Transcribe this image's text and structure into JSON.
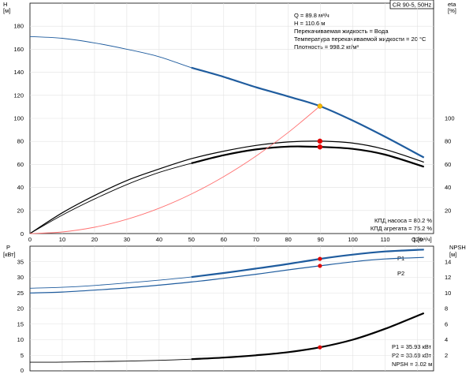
{
  "chart_data": [
    {
      "type": "line",
      "badge": "CR 90-5, 50Hz",
      "x_axis": {
        "label": "Q [м³/ч]",
        "range": [
          0,
          125
        ],
        "ticks": [
          10,
          20,
          30,
          40,
          50,
          60,
          70,
          80,
          90,
          100,
          110,
          120
        ],
        "origin_label": "0"
      },
      "y_left": {
        "label_top": "H",
        "label_bottom": "[м]",
        "range": [
          0,
          200
        ],
        "ticks": [
          20,
          40,
          60,
          80,
          100,
          120,
          140,
          160,
          180
        ],
        "origin_label": "0"
      },
      "y_right": {
        "label_top": "eta",
        "label_bottom": "[%]",
        "range": [
          0,
          200
        ],
        "ticks": [
          20,
          40,
          60,
          80,
          100
        ]
      },
      "series": [
        {
          "id": "H",
          "color": "#1f5c9e",
          "width": 2.2,
          "thin_before_x": 45,
          "x": [
            0,
            10,
            20,
            30,
            40,
            50,
            60,
            70,
            80,
            89.8,
            100,
            110,
            122
          ],
          "y": [
            171,
            169.5,
            165.5,
            160,
            153.5,
            144,
            136,
            127,
            119,
            110.6,
            98,
            84,
            66
          ]
        },
        {
          "id": "eta_pump",
          "color": "#000000",
          "width": 1.2,
          "x": [
            0,
            10,
            20,
            30,
            40,
            50,
            60,
            70,
            80,
            89.8,
            100,
            110,
            122
          ],
          "y": [
            0,
            18,
            33,
            46,
            56,
            65,
            71.5,
            76.5,
            79.5,
            80.2,
            78.5,
            73,
            62
          ]
        },
        {
          "id": "eta_unit",
          "color": "#000000",
          "width": 2.2,
          "thin_before_x": 45,
          "x": [
            0,
            10,
            20,
            30,
            40,
            50,
            60,
            70,
            80,
            89.8,
            100,
            110,
            122
          ],
          "y": [
            0,
            16,
            30,
            42.5,
            53,
            61,
            68,
            73,
            75.5,
            75.2,
            73.5,
            68.5,
            58
          ]
        },
        {
          "id": "system",
          "color": "#ff7070",
          "width": 0.9,
          "x": [
            0,
            10,
            20,
            30,
            40,
            50,
            60,
            70,
            80,
            89.8
          ],
          "y": [
            0,
            1.4,
            5.5,
            12.4,
            22,
            34.3,
            49.4,
            67.2,
            87.8,
            110.6
          ]
        }
      ],
      "points": [
        {
          "x": 89.8,
          "y": 110.6,
          "color": "#f5b800"
        },
        {
          "x": 89.8,
          "y": 80.2,
          "color": "#e00000"
        },
        {
          "x": 89.8,
          "y": 75.2,
          "color": "#e00000"
        }
      ],
      "annotations": {
        "top": [
          "Q = 89.8 м³/ч",
          "H = 110.6 м",
          "Перекачиваемая жидкость = Вода",
          "Температура перекачиваемой жидкости = 20 °C",
          "Плотность = 998.2 кг/м³"
        ],
        "bottom": [
          "КПД насоса = 80.2 %",
          "КПД агрегата = 75.2 %"
        ]
      }
    },
    {
      "type": "line",
      "x_axis": {
        "range": [
          0,
          125
        ]
      },
      "y_left": {
        "label_top": "P",
        "label_bottom": "[кВт]",
        "range": [
          0,
          40
        ],
        "ticks": [
          5,
          10,
          15,
          20,
          25,
          30,
          35
        ],
        "origin_label": "0"
      },
      "y_right": {
        "label_top": "NPSH",
        "label_bottom": "[м]",
        "range": [
          0,
          16
        ],
        "ticks": [
          2,
          4,
          6,
          8,
          10,
          12,
          14
        ]
      },
      "series": [
        {
          "id": "P1",
          "name": "P1",
          "axis": "left",
          "color": "#1f5c9e",
          "width": 2.2,
          "thin_before_x": 45,
          "x": [
            0,
            10,
            20,
            30,
            40,
            50,
            60,
            70,
            80,
            89.8,
            100,
            110,
            122
          ],
          "y": [
            26.5,
            26.8,
            27.4,
            28.2,
            29.1,
            30.1,
            31.4,
            32.8,
            34.3,
            35.93,
            37.3,
            38.3,
            38.9
          ]
        },
        {
          "id": "P2",
          "name": "P2",
          "axis": "left",
          "color": "#1f5c9e",
          "width": 1.2,
          "x": [
            0,
            10,
            20,
            30,
            40,
            50,
            60,
            70,
            80,
            89.8,
            100,
            110,
            122
          ],
          "y": [
            25,
            25.3,
            25.9,
            26.6,
            27.5,
            28.5,
            29.7,
            31,
            32.4,
            33.69,
            35,
            35.9,
            36.4
          ]
        },
        {
          "id": "NPSH",
          "axis": "right",
          "color": "#000000",
          "width": 2.2,
          "thin_before_x": 45,
          "x": [
            0,
            10,
            20,
            30,
            40,
            50,
            60,
            70,
            80,
            89.8,
            100,
            110,
            122
          ],
          "y": [
            1.1,
            1.12,
            1.18,
            1.25,
            1.35,
            1.5,
            1.7,
            2.0,
            2.4,
            3.02,
            4.0,
            5.4,
            7.4
          ]
        }
      ],
      "points": [
        {
          "x": 89.8,
          "y": 35.93,
          "axis": "left",
          "color": "#e00000"
        },
        {
          "x": 89.8,
          "y": 33.69,
          "axis": "left",
          "color": "#e00000"
        },
        {
          "x": 89.8,
          "y": 3.02,
          "axis": "right",
          "color": "#e00000"
        }
      ],
      "annotations": {
        "bottom": [
          "P1 = 35.93 кВт",
          "P2 = 33.69 кВт",
          "NPSH = 3.02 м"
        ]
      }
    }
  ]
}
